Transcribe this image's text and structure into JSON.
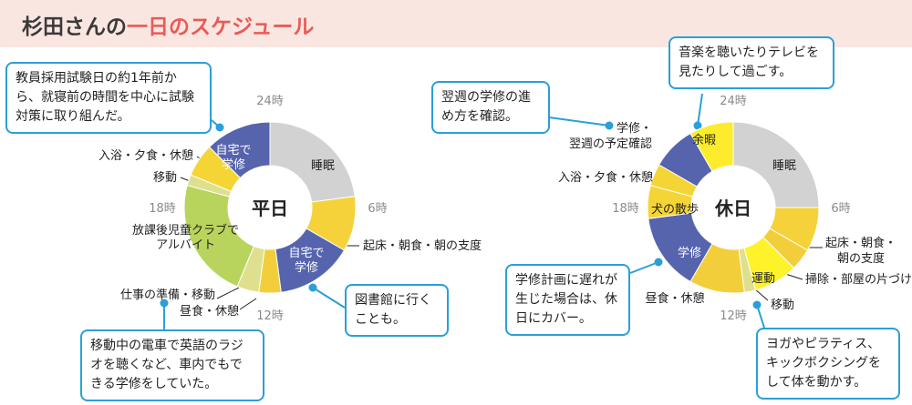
{
  "title": {
    "prefix": "杉田さんの",
    "accent": "一日のスケジュール"
  },
  "colors": {
    "sleep": "#d2d2d2",
    "morning": "#f6d23a",
    "study": "#5664ad",
    "meal": "#f2cf3a",
    "work": "#b8d45c",
    "move": "#dfe08e",
    "bath": "#f5d535",
    "free": "#fcec2c",
    "exercise": "#fef22b",
    "accent": "#ea5a55",
    "callout": "#2a9fd8"
  },
  "chart_data": [
    {
      "type": "pie",
      "center_label": "平日",
      "hour_ticks": {
        "0": "24時",
        "6": "6時",
        "12": "12時",
        "18": "18時"
      },
      "segments": [
        {
          "label": "睡眠",
          "start": 0,
          "end": 5.5,
          "color": "sleep"
        },
        {
          "label": "起床・朝食・朝の支度",
          "start": 5.5,
          "end": 8,
          "color": "morning"
        },
        {
          "label": "自宅で学修",
          "start": 8,
          "end": 11.5,
          "color": "study"
        },
        {
          "label": "昼食・休憩",
          "start": 11.5,
          "end": 12.5,
          "color": "meal"
        },
        {
          "label": "仕事の準備・移動",
          "start": 12.5,
          "end": 13.5,
          "color": "move"
        },
        {
          "label": "放課後児童クラブでアルバイト",
          "start": 13.5,
          "end": 19,
          "color": "work"
        },
        {
          "label": "移動",
          "start": 19,
          "end": 19.5,
          "color": "move"
        },
        {
          "label": "入浴・夕食・休憩",
          "start": 19.5,
          "end": 21,
          "color": "bath"
        },
        {
          "label": "自宅で学修",
          "start": 21,
          "end": 24,
          "color": "study"
        }
      ]
    },
    {
      "type": "pie",
      "center_label": "休日",
      "hour_ticks": {
        "0": "24時",
        "6": "6時",
        "12": "12時",
        "18": "18時"
      },
      "segments": [
        {
          "label": "睡眠",
          "start": 0,
          "end": 6,
          "color": "sleep"
        },
        {
          "label": "起床・朝食・朝の支度",
          "start": 6,
          "end": 8,
          "color": "morning"
        },
        {
          "label": "掃除・部屋の片づけ",
          "start": 8,
          "end": 9,
          "color": "meal"
        },
        {
          "label": "運動",
          "start": 9,
          "end": 11,
          "color": "exercise"
        },
        {
          "label": "移動",
          "start": 11,
          "end": 11.5,
          "color": "move"
        },
        {
          "label": "昼食・休憩",
          "start": 11.5,
          "end": 14,
          "color": "meal"
        },
        {
          "label": "学修",
          "start": 14,
          "end": 17.5,
          "color": "study"
        },
        {
          "label": "犬の散歩",
          "start": 17.5,
          "end": 19,
          "color": "bath"
        },
        {
          "label": "入浴・夕食・休憩",
          "start": 19,
          "end": 20,
          "color": "bath"
        },
        {
          "label": "学修・翌週の予定確認",
          "start": 20,
          "end": 22,
          "color": "study"
        },
        {
          "label": "余暇",
          "start": 22,
          "end": 24,
          "color": "free"
        }
      ]
    }
  ],
  "labels": {
    "weekday_sleep": "睡眠",
    "weekday_study_a": "自宅で",
    "weekday_study_b": "学修",
    "weekday_morning": "起床・朝食・朝の支度",
    "weekday_work_a": "放課後児童クラブで",
    "weekday_work_b": "アルバイト",
    "weekday_bath": "入浴・夕食・休憩",
    "weekday_move": "移動",
    "weekday_prep": "仕事の準備・移動",
    "weekday_lunch": "昼食・休憩",
    "holiday_sleep": "睡眠",
    "holiday_free": "余暇",
    "holiday_study_week_a": "学修・",
    "holiday_study_week_b": "翌週の予定確認",
    "holiday_bath": "入浴・夕食・休憩",
    "holiday_dog": "犬の散歩",
    "holiday_study": "学修",
    "holiday_morning_a": "起床・朝食・",
    "holiday_morning_b": "朝の支度",
    "holiday_clean": "掃除・部屋の片づけ",
    "holiday_exercise": "運動",
    "holiday_move": "移動",
    "holiday_lunch": "昼食・休憩"
  },
  "callouts": {
    "weekday_top": "教員採用試験日の約1年前から、就寝前の時間を中心に試験対策に取り組んだ。",
    "weekday_library": "図書館に行くことも。",
    "weekday_commute": "移動中の電車で英語のラジオを聴くなど、車内でもできる学修をしていた。",
    "holiday_review": "翌週の学修の進め方を確認。",
    "holiday_tv": "音楽を聴いたりテレビを見たりして過ごす。",
    "holiday_catchup": "学修計画に遅れが生じた場合は、休日にカバー。",
    "holiday_exercise": "ヨガやピラティス、キックボクシングをして体を動かす。"
  }
}
